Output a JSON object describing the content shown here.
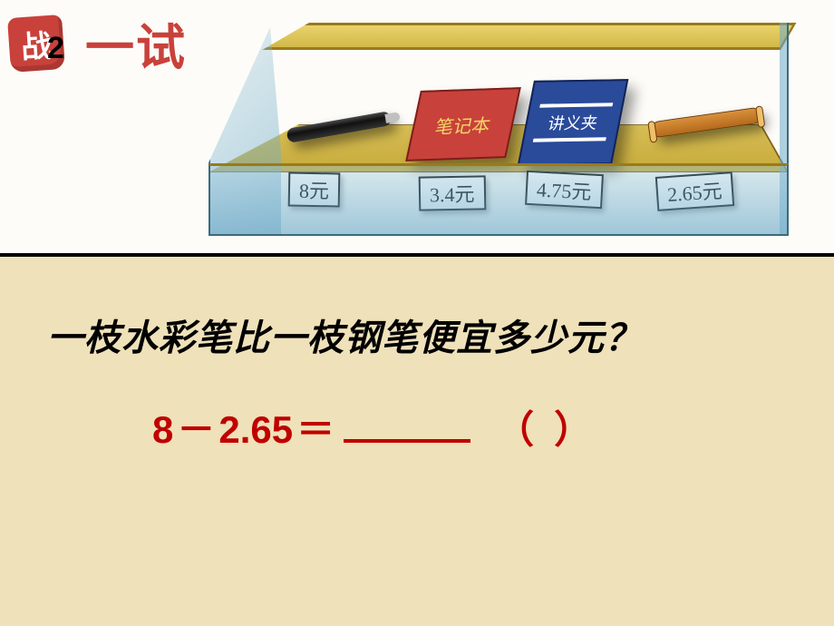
{
  "title": {
    "badge_char": "战",
    "badge_number": "2",
    "tail": "一试"
  },
  "case": {
    "items": {
      "notebook_label": "笔记本",
      "folder_label": "讲义夹"
    },
    "prices": {
      "pen": "8元",
      "notebook": "3.4元",
      "folder": "4.75元",
      "marker": "2.65元"
    }
  },
  "question": "一枝水彩笔比一枝钢笔便宜多少元？",
  "equation": {
    "lhs_a": "8",
    "op": "－",
    "lhs_b": "2.65",
    "eq": "＝",
    "paren_open": "（",
    "paren_close": "）"
  },
  "colors": {
    "page_bg": "#efe1b9",
    "accent_red": "#c00000",
    "badge_red": "#c9413b",
    "shelf_gold": "#c7ab3c",
    "glass": "#8fb9c9",
    "folder_blue": "#2a4a9a"
  }
}
